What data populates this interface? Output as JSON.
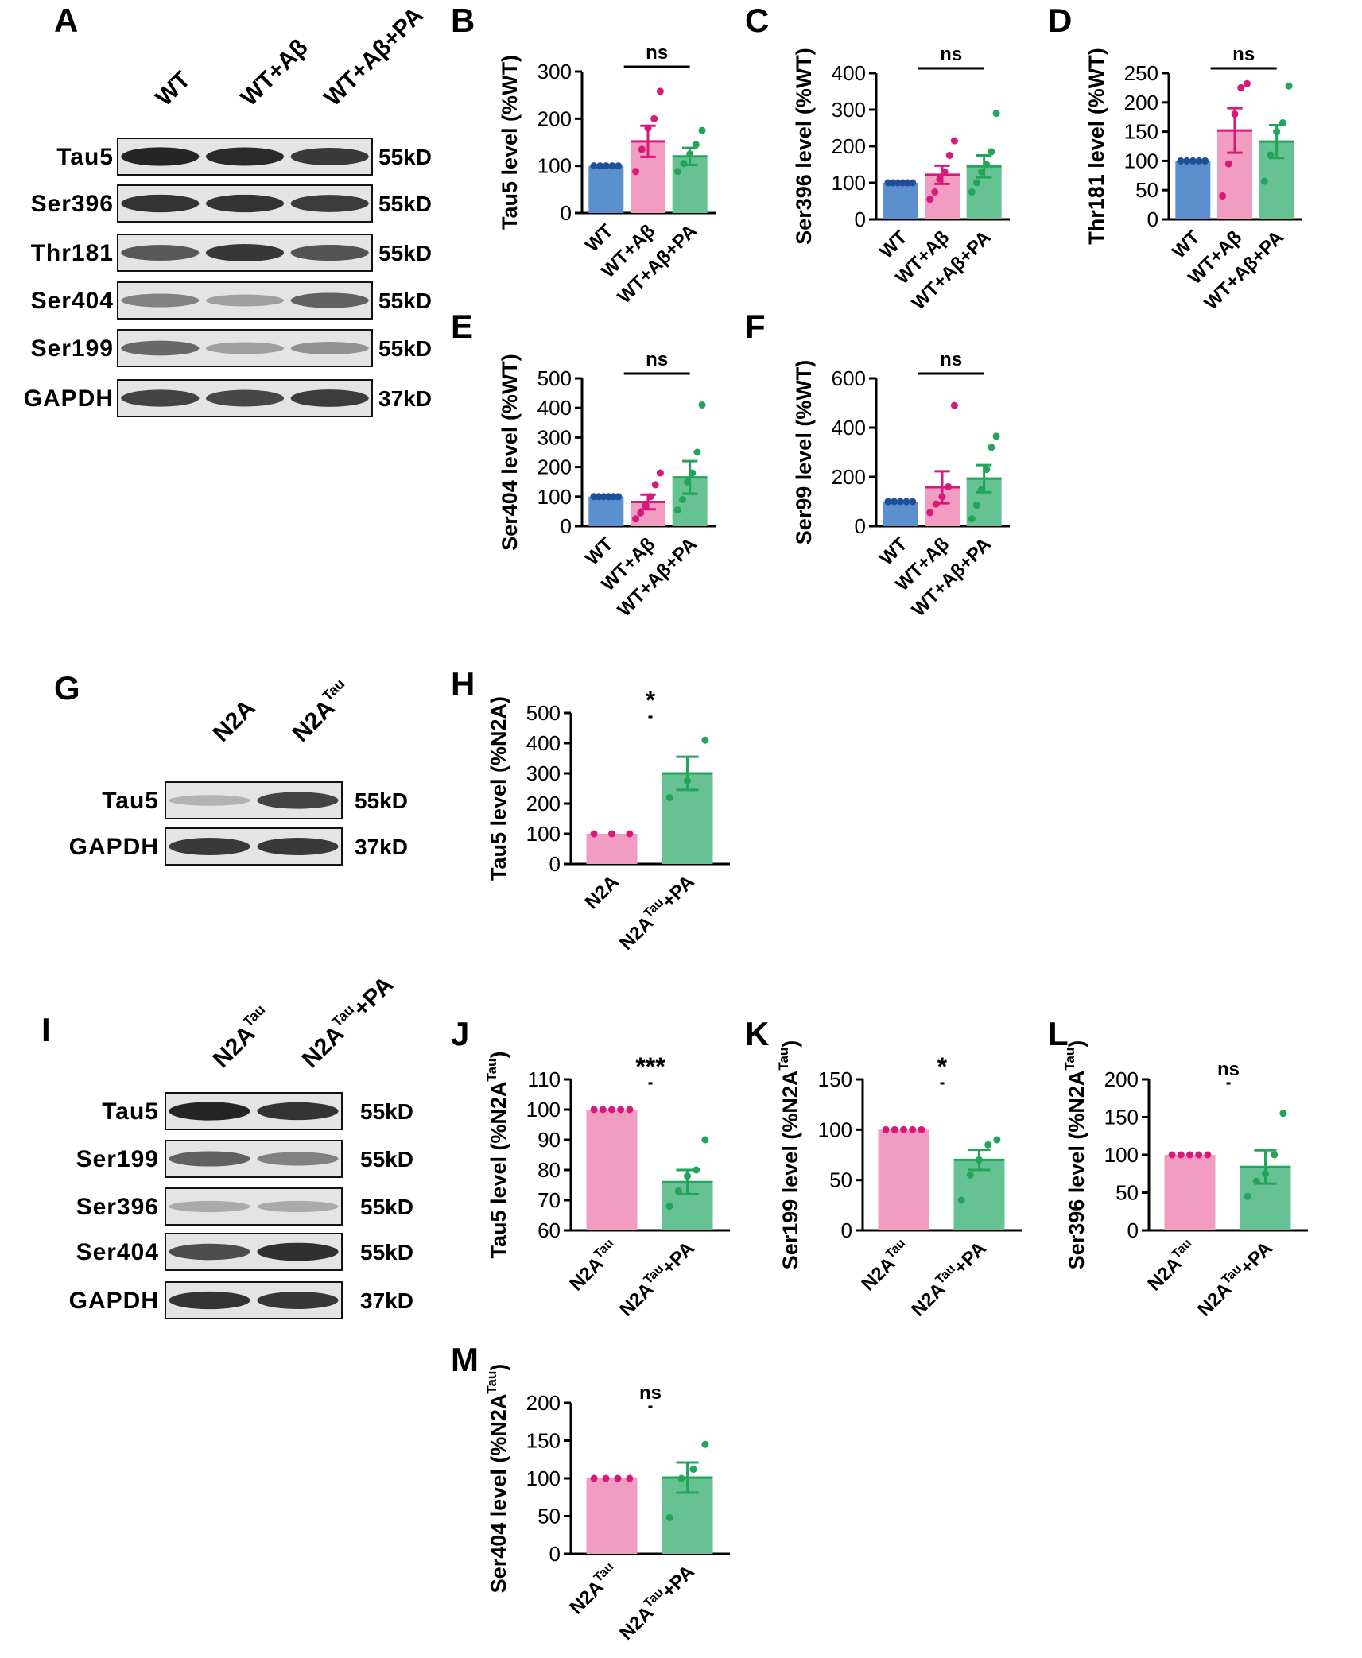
{
  "colors": {
    "wt": "#5b8fce",
    "wt_dot": "#1f4f9a",
    "ab": "#f39cc2",
    "ab_dot": "#d8187a",
    "pa": "#66c193",
    "pa_dot": "#22a45a"
  },
  "blots": [
    {
      "panel_label": "A",
      "lane_labels": [
        "WT",
        "WT+Aβ",
        "WT+Aβ+PA"
      ],
      "rows": [
        {
          "label": "Tau5",
          "size": "55kD",
          "intensity": [
            0.95,
            0.92,
            0.85
          ]
        },
        {
          "label": "Ser396",
          "size": "55kD",
          "intensity": [
            0.88,
            0.88,
            0.84
          ]
        },
        {
          "label": "Thr181",
          "size": "55kD",
          "intensity": [
            0.7,
            0.86,
            0.72
          ]
        },
        {
          "label": "Ser404",
          "size": "55kD",
          "intensity": [
            0.5,
            0.35,
            0.65
          ]
        },
        {
          "label": "Ser199",
          "size": "55kD",
          "intensity": [
            0.62,
            0.35,
            0.42
          ]
        },
        {
          "label": "GAPDH",
          "size": "37kD",
          "intensity": [
            0.8,
            0.78,
            0.84
          ]
        }
      ]
    },
    {
      "panel_label": "G",
      "lane_labels": [
        "N2A",
        "N2A"
      ],
      "lane_sups": [
        "",
        "Tau"
      ],
      "rows": [
        {
          "label": "Tau5",
          "size": "55kD",
          "intensity": [
            0.25,
            0.8
          ]
        },
        {
          "label": "GAPDH",
          "size": "37kD",
          "intensity": [
            0.85,
            0.85
          ]
        }
      ]
    },
    {
      "panel_label": "I",
      "lane_labels": [
        "N2A",
        "N2A"
      ],
      "lane_sups": [
        "Tau",
        "Tau"
      ],
      "lane_suffix": [
        "",
        "+PA"
      ],
      "rows": [
        {
          "label": "Tau5",
          "size": "55kD",
          "intensity": [
            0.95,
            0.88
          ]
        },
        {
          "label": "Ser199",
          "size": "55kD",
          "intensity": [
            0.65,
            0.5
          ]
        },
        {
          "label": "Ser396",
          "size": "55kD",
          "intensity": [
            0.3,
            0.3
          ]
        },
        {
          "label": "Ser404",
          "size": "55kD",
          "intensity": [
            0.75,
            0.9
          ]
        },
        {
          "label": "GAPDH",
          "size": "37kD",
          "intensity": [
            0.88,
            0.86
          ]
        }
      ]
    }
  ],
  "chart_data": [
    {
      "panel_label": "B",
      "type": "bar",
      "ylabel": "Tau5 level (%WT)",
      "ylim": [
        0,
        300
      ],
      "ticks": [
        0,
        100,
        200,
        300
      ],
      "categories": [
        "WT",
        "WT+Aβ",
        "WT+Aβ+PA"
      ],
      "values": [
        100,
        152,
        120
      ],
      "sem": [
        0,
        33,
        18
      ],
      "points": [
        [
          100,
          100,
          100,
          100,
          100
        ],
        [
          88,
          135,
          180,
          200,
          258
        ],
        [
          88,
          105,
          125,
          145,
          175
        ]
      ],
      "sig": "ns"
    },
    {
      "panel_label": "C",
      "type": "bar",
      "ylabel": "Ser396 level (%WT)",
      "ylim": [
        0,
        400
      ],
      "ticks": [
        0,
        100,
        200,
        300,
        400
      ],
      "categories": [
        "WT",
        "WT+Aβ",
        "WT+Aβ+PA"
      ],
      "values": [
        100,
        122,
        145
      ],
      "sem": [
        0,
        25,
        30
      ],
      "points": [
        [
          100,
          100,
          100,
          100,
          100,
          100
        ],
        [
          55,
          75,
          110,
          130,
          175,
          215
        ],
        [
          75,
          100,
          130,
          150,
          185,
          290
        ]
      ],
      "sig": "ns"
    },
    {
      "panel_label": "D",
      "type": "bar",
      "ylabel": "Thr181 level (%WT)",
      "ylim": [
        0,
        250
      ],
      "ticks": [
        0,
        50,
        100,
        150,
        200,
        250
      ],
      "categories": [
        "WT",
        "WT+Aβ",
        "WT+Aβ+PA"
      ],
      "values": [
        100,
        152,
        133
      ],
      "sem": [
        0,
        38,
        28
      ],
      "points": [
        [
          100,
          100,
          100,
          100,
          100
        ],
        [
          40,
          95,
          180,
          225,
          232
        ],
        [
          65,
          110,
          150,
          165,
          228
        ]
      ],
      "sig": "ns"
    },
    {
      "panel_label": "E",
      "type": "bar",
      "ylabel": "Ser404 level (%WT)",
      "ylim": [
        0,
        500
      ],
      "ticks": [
        0,
        100,
        200,
        300,
        400,
        500
      ],
      "categories": [
        "WT",
        "WT+Aβ",
        "WT+Aβ+PA"
      ],
      "values": [
        100,
        82,
        165
      ],
      "sem": [
        0,
        25,
        55
      ],
      "points": [
        [
          100,
          100,
          100,
          100,
          100,
          100
        ],
        [
          25,
          45,
          70,
          100,
          140,
          180
        ],
        [
          55,
          90,
          150,
          180,
          250,
          410
        ]
      ],
      "sig": "ns"
    },
    {
      "panel_label": "F",
      "type": "bar",
      "ylabel": "Ser99 level (%WT)",
      "ylim": [
        0,
        600
      ],
      "ticks": [
        0,
        200,
        400,
        600
      ],
      "categories": [
        "WT",
        "WT+Aβ",
        "WT+Aβ+PA"
      ],
      "values": [
        100,
        158,
        193
      ],
      "sem": [
        0,
        65,
        55
      ],
      "points": [
        [
          100,
          100,
          100,
          100,
          100
        ],
        [
          55,
          90,
          120,
          160,
          490
        ],
        [
          30,
          85,
          150,
          230,
          320,
          365
        ]
      ],
      "sig": "ns"
    },
    {
      "panel_label": "H",
      "type": "bar",
      "ylabel": "Tau5 level (%N2A)",
      "ylim": [
        0,
        500
      ],
      "ticks": [
        0,
        100,
        200,
        300,
        400,
        500
      ],
      "categories": [
        "N2A",
        "N2A"
      ],
      "category_sups": [
        "",
        "Tau"
      ],
      "category_suffix": [
        "",
        "+PA"
      ],
      "values": [
        100,
        300
      ],
      "sem": [
        0,
        55
      ],
      "points": [
        [
          100,
          100,
          100
        ],
        [
          220,
          275,
          410
        ]
      ],
      "sig": "*",
      "ylabel_sup": "",
      "colors": [
        "ab",
        "pa"
      ]
    },
    {
      "panel_label": "J",
      "type": "bar",
      "ylabel": "Tau5 level (%N2A",
      "ylabel_sup": "Tau",
      "ylabel_end": ")",
      "ylim": [
        60,
        110
      ],
      "ticks": [
        60,
        70,
        80,
        90,
        100,
        110
      ],
      "categories": [
        "N2A",
        "N2A"
      ],
      "category_sups": [
        "Tau",
        "Tau"
      ],
      "category_suffix": [
        "",
        "+PA"
      ],
      "values": [
        100,
        76
      ],
      "sem": [
        0,
        4
      ],
      "points": [
        [
          100,
          100,
          100,
          100,
          100
        ],
        [
          68,
          73,
          78,
          80,
          90
        ]
      ],
      "sig": "***",
      "colors": [
        "ab",
        "pa"
      ]
    },
    {
      "panel_label": "K",
      "type": "bar",
      "ylabel": "Ser199 level (%N2A",
      "ylabel_sup": "Tau",
      "ylabel_end": ")",
      "ylim": [
        0,
        150
      ],
      "ticks": [
        0,
        50,
        100,
        150
      ],
      "categories": [
        "N2A",
        "N2A"
      ],
      "category_sups": [
        "Tau",
        "Tau"
      ],
      "category_suffix": [
        "",
        "+PA"
      ],
      "values": [
        100,
        70
      ],
      "sem": [
        0,
        10
      ],
      "points": [
        [
          100,
          100,
          100,
          100,
          100
        ],
        [
          30,
          55,
          70,
          85,
          90
        ]
      ],
      "sig": "*",
      "colors": [
        "ab",
        "pa"
      ]
    },
    {
      "panel_label": "L",
      "type": "bar",
      "ylabel": "Ser396 level (%N2A",
      "ylabel_sup": "Tau",
      "ylabel_end": ")",
      "ylim": [
        0,
        200
      ],
      "ticks": [
        0,
        50,
        100,
        150,
        200
      ],
      "categories": [
        "N2A",
        "N2A"
      ],
      "category_sups": [
        "Tau",
        "Tau"
      ],
      "category_suffix": [
        "",
        "+PA"
      ],
      "values": [
        100,
        84
      ],
      "sem": [
        0,
        22
      ],
      "points": [
        [
          100,
          100,
          100,
          100,
          100
        ],
        [
          45,
          65,
          75,
          100,
          155
        ]
      ],
      "sig": "ns",
      "colors": [
        "ab",
        "pa"
      ]
    },
    {
      "panel_label": "M",
      "type": "bar",
      "ylabel": "Ser404 level (%N2A",
      "ylabel_sup": "Tau",
      "ylabel_end": ")",
      "ylim": [
        0,
        200
      ],
      "ticks": [
        0,
        50,
        100,
        150,
        200
      ],
      "categories": [
        "N2A",
        "N2A"
      ],
      "category_sups": [
        "Tau",
        "Tau"
      ],
      "category_suffix": [
        "",
        "+PA"
      ],
      "values": [
        100,
        101
      ],
      "sem": [
        0,
        20
      ],
      "points": [
        [
          100,
          100,
          100,
          100
        ],
        [
          48,
          100,
          112,
          145
        ]
      ],
      "sig": "ns",
      "colors": [
        "ab",
        "pa"
      ]
    }
  ]
}
